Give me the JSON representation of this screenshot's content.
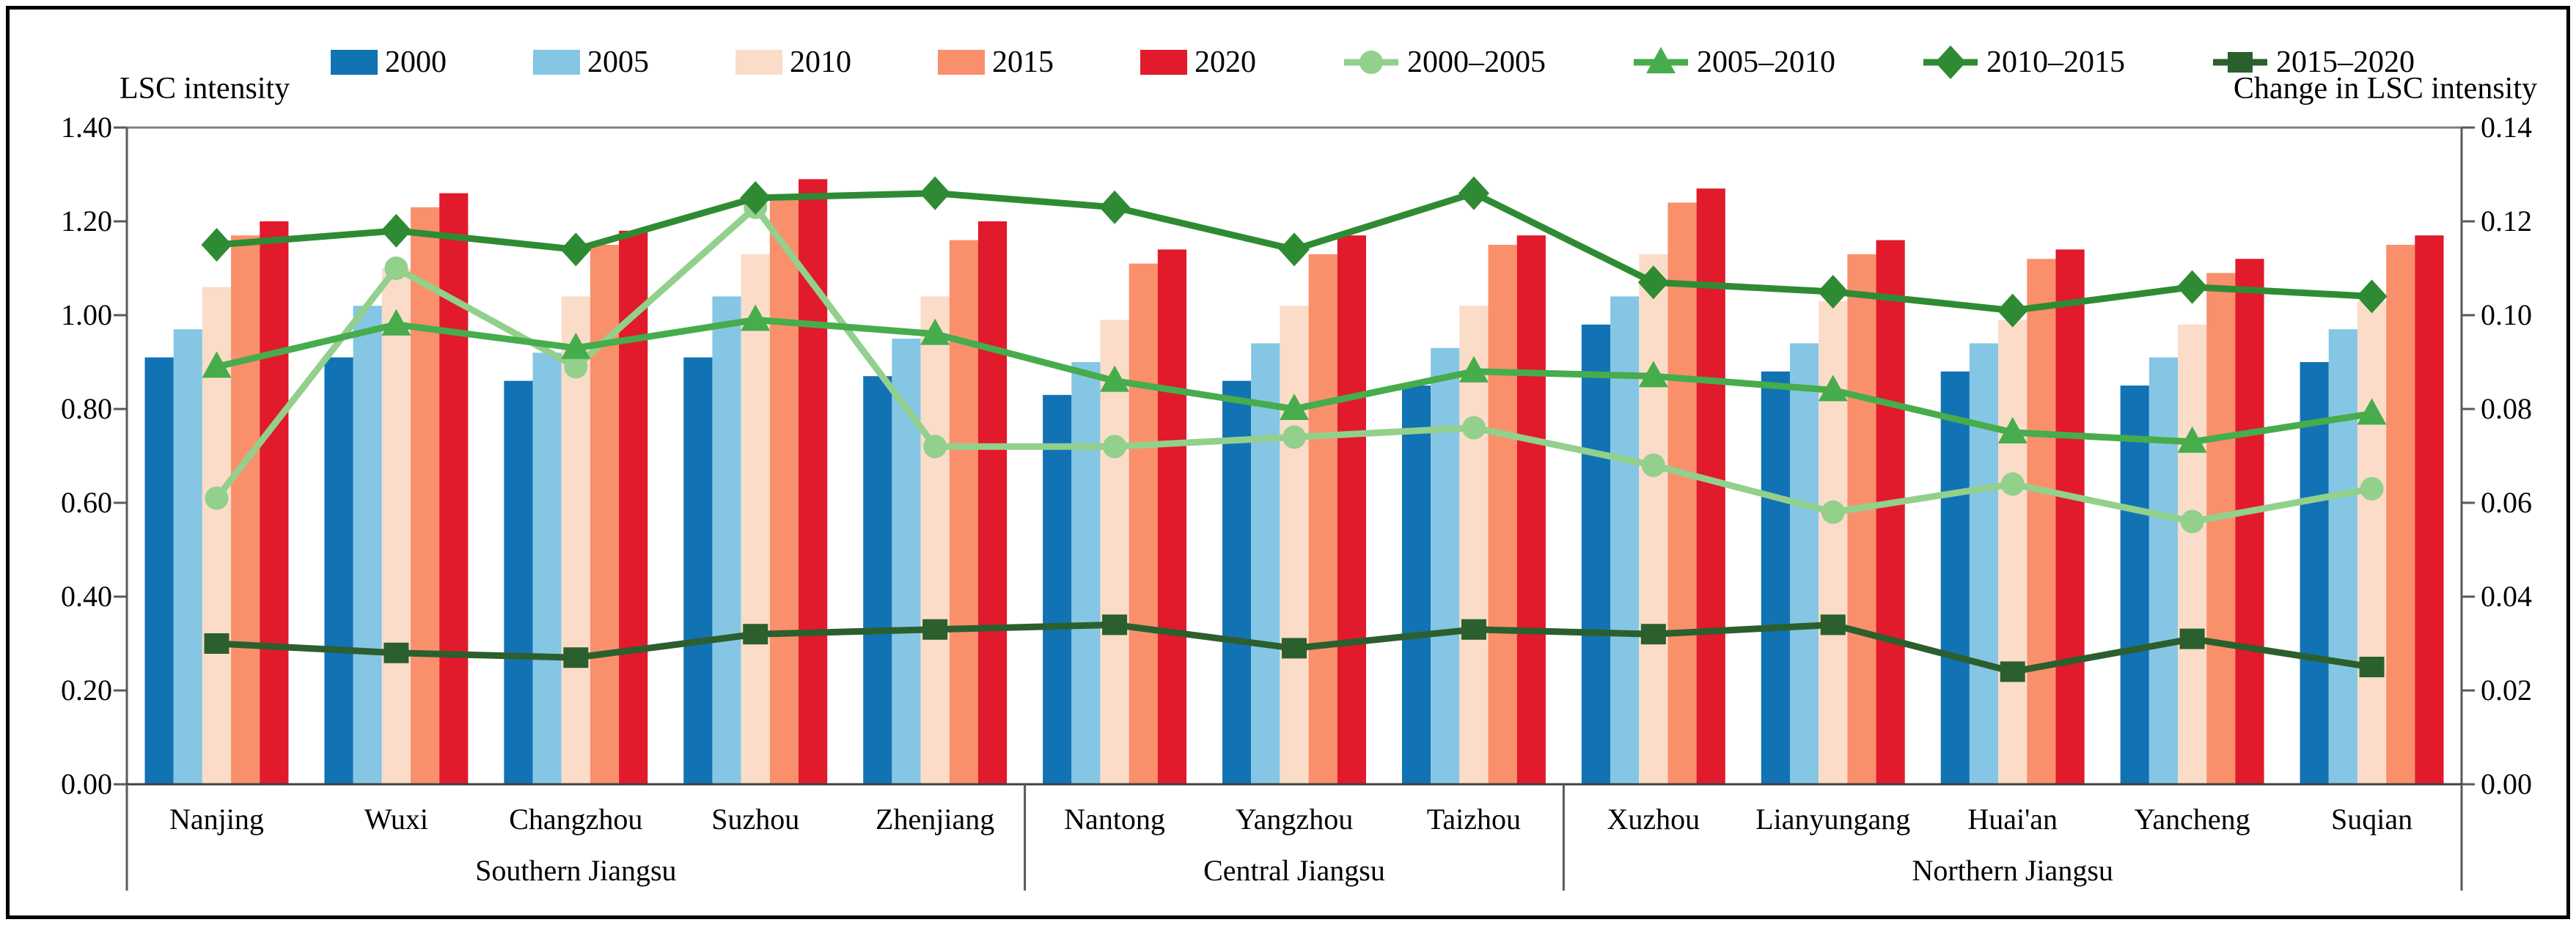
{
  "figure": {
    "left_axis_title": "LSC intensity",
    "right_axis_title": "Change in LSC intensity"
  },
  "chart_data": {
    "type": "bar+line",
    "categories": [
      "Nanjing",
      "Wuxi",
      "Changzhou",
      "Suzhou",
      "Zhenjiang",
      "Nantong",
      "Yangzhou",
      "Taizhou",
      "Xuzhou",
      "Lianyungang",
      "Huai'an",
      "Yancheng",
      "Suqian"
    ],
    "category_groups": [
      {
        "label": "Southern Jiangsu",
        "span": 5
      },
      {
        "label": "Central Jiangsu",
        "span": 3
      },
      {
        "label": "Northern Jiangsu",
        "span": 5
      }
    ],
    "left_axis": {
      "title": "LSC intensity",
      "min": 0,
      "max": 1.4,
      "step": 0.2,
      "tick_labels": [
        "1.40",
        "1.20",
        "1.00",
        "0.80",
        "0.60",
        "0.40",
        "0.20",
        "0.00"
      ]
    },
    "right_axis": {
      "title": "Change in LSC intensity",
      "min": 0,
      "max": 0.14,
      "step": 0.02,
      "tick_labels": [
        "0.14",
        "0.12",
        "0.10",
        "0.08",
        "0.06",
        "0.04",
        "0.02",
        "0.00"
      ]
    },
    "bar_series": [
      {
        "name": "2000",
        "color": "#1173B4",
        "values": [
          0.91,
          0.91,
          0.86,
          0.91,
          0.87,
          0.83,
          0.86,
          0.85,
          0.98,
          0.88,
          0.88,
          0.85,
          0.9
        ]
      },
      {
        "name": "2005",
        "color": "#85C6E4",
        "values": [
          0.97,
          1.02,
          0.92,
          1.04,
          0.95,
          0.9,
          0.94,
          0.93,
          1.04,
          0.94,
          0.94,
          0.91,
          0.97
        ]
      },
      {
        "name": "2010",
        "color": "#FBDCC9",
        "values": [
          1.06,
          1.1,
          1.04,
          1.13,
          1.04,
          0.99,
          1.02,
          1.02,
          1.13,
          1.03,
          0.99,
          0.98,
          1.03
        ]
      },
      {
        "name": "2015",
        "color": "#F9906B",
        "values": [
          1.17,
          1.23,
          1.15,
          1.25,
          1.16,
          1.11,
          1.13,
          1.15,
          1.24,
          1.13,
          1.12,
          1.09,
          1.15
        ]
      },
      {
        "name": "2020",
        "color": "#E11A2C",
        "values": [
          1.2,
          1.26,
          1.18,
          1.29,
          1.2,
          1.14,
          1.17,
          1.17,
          1.27,
          1.16,
          1.14,
          1.12,
          1.17
        ]
      }
    ],
    "line_series": [
      {
        "name": "2000–2005",
        "color": "#92D08C",
        "marker": "circle",
        "values": [
          0.061,
          0.11,
          0.089,
          0.123,
          0.072,
          0.072,
          0.074,
          0.076,
          0.068,
          0.058,
          0.064,
          0.056,
          0.063
        ]
      },
      {
        "name": "2005–2010",
        "color": "#46AC4C",
        "marker": "triangle",
        "values": [
          0.089,
          0.098,
          0.093,
          0.099,
          0.096,
          0.086,
          0.08,
          0.088,
          0.087,
          0.084,
          0.075,
          0.073,
          0.079
        ]
      },
      {
        "name": "2010–2015",
        "color": "#2F8B33",
        "marker": "diamond",
        "values": [
          0.115,
          0.118,
          0.114,
          0.125,
          0.126,
          0.123,
          0.114,
          0.126,
          0.107,
          0.105,
          0.101,
          0.106,
          0.104
        ]
      },
      {
        "name": "2015–2020",
        "color": "#2B5F2E",
        "marker": "square",
        "values": [
          0.03,
          0.028,
          0.027,
          0.032,
          0.033,
          0.034,
          0.029,
          0.033,
          0.032,
          0.034,
          0.024,
          0.031,
          0.025
        ]
      }
    ],
    "legend_position": "top",
    "grid": false,
    "plot_border_color": "#7F7F7F",
    "axis_line_color": "#595959"
  }
}
